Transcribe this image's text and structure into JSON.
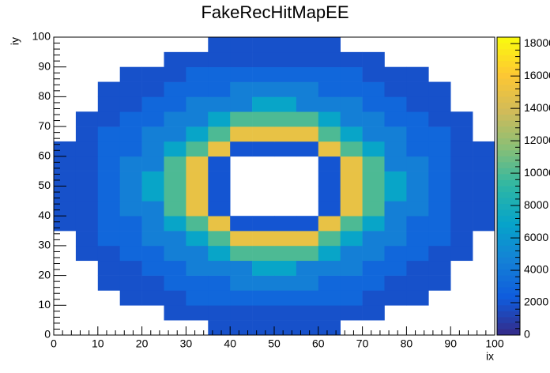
{
  "chart_data": {
    "type": "heatmap",
    "title": "FakeRecHitMapEE",
    "xlabel": "ix",
    "ylabel": "iy",
    "xbins": [
      0,
      5,
      10,
      15,
      20,
      25,
      30,
      35,
      40,
      45,
      50,
      55,
      60,
      65,
      70,
      75,
      80,
      85,
      90,
      95,
      100
    ],
    "ybins": [
      0,
      5,
      10,
      15,
      20,
      25,
      30,
      35,
      40,
      45,
      50,
      55,
      60,
      65,
      70,
      75,
      80,
      85,
      90,
      95,
      100
    ],
    "xlim": [
      0,
      100
    ],
    "xticks": [
      0,
      10,
      20,
      30,
      40,
      50,
      60,
      70,
      80,
      90,
      100
    ],
    "ylim": [
      0,
      100
    ],
    "yticks": [
      0,
      10,
      20,
      30,
      40,
      50,
      60,
      70,
      80,
      90,
      100
    ],
    "zlim": [
      0,
      18400
    ],
    "zticks": [
      0,
      2000,
      4000,
      6000,
      8000,
      10000,
      12000,
      14000,
      16000,
      18000
    ],
    "colormap": [
      "#352a87",
      "#0f5cdd",
      "#1481d6",
      "#06a4ca",
      "#2eb7a4",
      "#87bf77",
      "#d1bb59",
      "#fec832",
      "#f9fb0e"
    ],
    "z": [
      [
        null,
        null,
        null,
        null,
        null,
        null,
        null,
        1800,
        1800,
        1800,
        1800,
        1800,
        1800,
        null,
        null,
        null,
        null,
        null,
        null,
        null
      ],
      [
        null,
        null,
        null,
        null,
        null,
        1800,
        1800,
        1800,
        1800,
        1800,
        1800,
        1800,
        1800,
        1800,
        1800,
        null,
        null,
        null,
        null,
        null
      ],
      [
        null,
        null,
        null,
        1800,
        1800,
        1800,
        3000,
        3000,
        3000,
        3000,
        3000,
        3000,
        3000,
        3000,
        1800,
        1800,
        1800,
        null,
        null,
        null
      ],
      [
        null,
        null,
        1800,
        1800,
        1800,
        3000,
        3000,
        3000,
        4500,
        4500,
        4500,
        4500,
        3000,
        3000,
        3000,
        1800,
        1800,
        1800,
        null,
        null
      ],
      [
        null,
        null,
        1800,
        1800,
        3000,
        3000,
        4500,
        4500,
        4500,
        7000,
        7000,
        4500,
        4500,
        4500,
        3000,
        3000,
        1800,
        1800,
        null,
        null
      ],
      [
        null,
        1800,
        1800,
        3000,
        3000,
        4500,
        4500,
        7000,
        10000,
        10000,
        10000,
        10000,
        7000,
        4500,
        4500,
        3000,
        3000,
        1800,
        1800,
        null
      ],
      [
        null,
        1800,
        3000,
        3000,
        4500,
        4500,
        7000,
        10000,
        15000,
        15000,
        15000,
        15000,
        10000,
        7000,
        4500,
        4500,
        3000,
        3000,
        1800,
        null
      ],
      [
        1800,
        1800,
        3000,
        3000,
        4500,
        7000,
        10000,
        15000,
        2000,
        2000,
        2000,
        2000,
        15000,
        10000,
        7000,
        4500,
        3000,
        3000,
        1800,
        1800
      ],
      [
        1800,
        1800,
        3000,
        4500,
        4500,
        10000,
        15000,
        2000,
        null,
        null,
        null,
        null,
        2000,
        15000,
        10000,
        4500,
        4500,
        3000,
        1800,
        1800
      ],
      [
        1800,
        1800,
        3000,
        4500,
        7000,
        10000,
        15000,
        2000,
        null,
        null,
        null,
        null,
        2000,
        15000,
        10000,
        7000,
        4500,
        3000,
        1800,
        1800
      ],
      [
        1800,
        1800,
        3000,
        4500,
        7000,
        10000,
        15000,
        2000,
        null,
        null,
        null,
        null,
        2000,
        15000,
        10000,
        7000,
        4500,
        3000,
        1800,
        1800
      ],
      [
        1800,
        1800,
        3000,
        4500,
        4500,
        10000,
        15000,
        2000,
        null,
        null,
        null,
        null,
        2000,
        15000,
        10000,
        4500,
        4500,
        3000,
        1800,
        1800
      ],
      [
        1800,
        1800,
        3000,
        3000,
        4500,
        7000,
        10000,
        15000,
        2000,
        2000,
        2000,
        2000,
        15000,
        10000,
        7000,
        4500,
        3000,
        3000,
        1800,
        1800
      ],
      [
        null,
        1800,
        3000,
        3000,
        4500,
        4500,
        7000,
        10000,
        15000,
        15000,
        15000,
        15000,
        10000,
        7000,
        4500,
        4500,
        3000,
        3000,
        1800,
        null
      ],
      [
        null,
        1800,
        1800,
        3000,
        3000,
        4500,
        4500,
        7000,
        10000,
        10000,
        10000,
        10000,
        7000,
        4500,
        4500,
        3000,
        3000,
        1800,
        1800,
        null
      ],
      [
        null,
        null,
        1800,
        1800,
        3000,
        3000,
        4500,
        4500,
        4500,
        7000,
        7000,
        4500,
        4500,
        4500,
        3000,
        3000,
        1800,
        1800,
        null,
        null
      ],
      [
        null,
        null,
        1800,
        1800,
        1800,
        3000,
        3000,
        3000,
        4500,
        4500,
        4500,
        4500,
        3000,
        3000,
        3000,
        1800,
        1800,
        1800,
        null,
        null
      ],
      [
        null,
        null,
        null,
        1800,
        1800,
        1800,
        3000,
        3000,
        3000,
        3000,
        3000,
        3000,
        3000,
        3000,
        1800,
        1800,
        1800,
        null,
        null,
        null
      ],
      [
        null,
        null,
        null,
        null,
        null,
        1800,
        1800,
        1800,
        1800,
        1800,
        1800,
        1800,
        1800,
        1800,
        1800,
        null,
        null,
        null,
        null,
        null
      ],
      [
        null,
        null,
        null,
        null,
        null,
        null,
        null,
        1800,
        1800,
        1800,
        1800,
        1800,
        1800,
        null,
        null,
        null,
        null,
        null,
        null,
        null
      ]
    ]
  }
}
